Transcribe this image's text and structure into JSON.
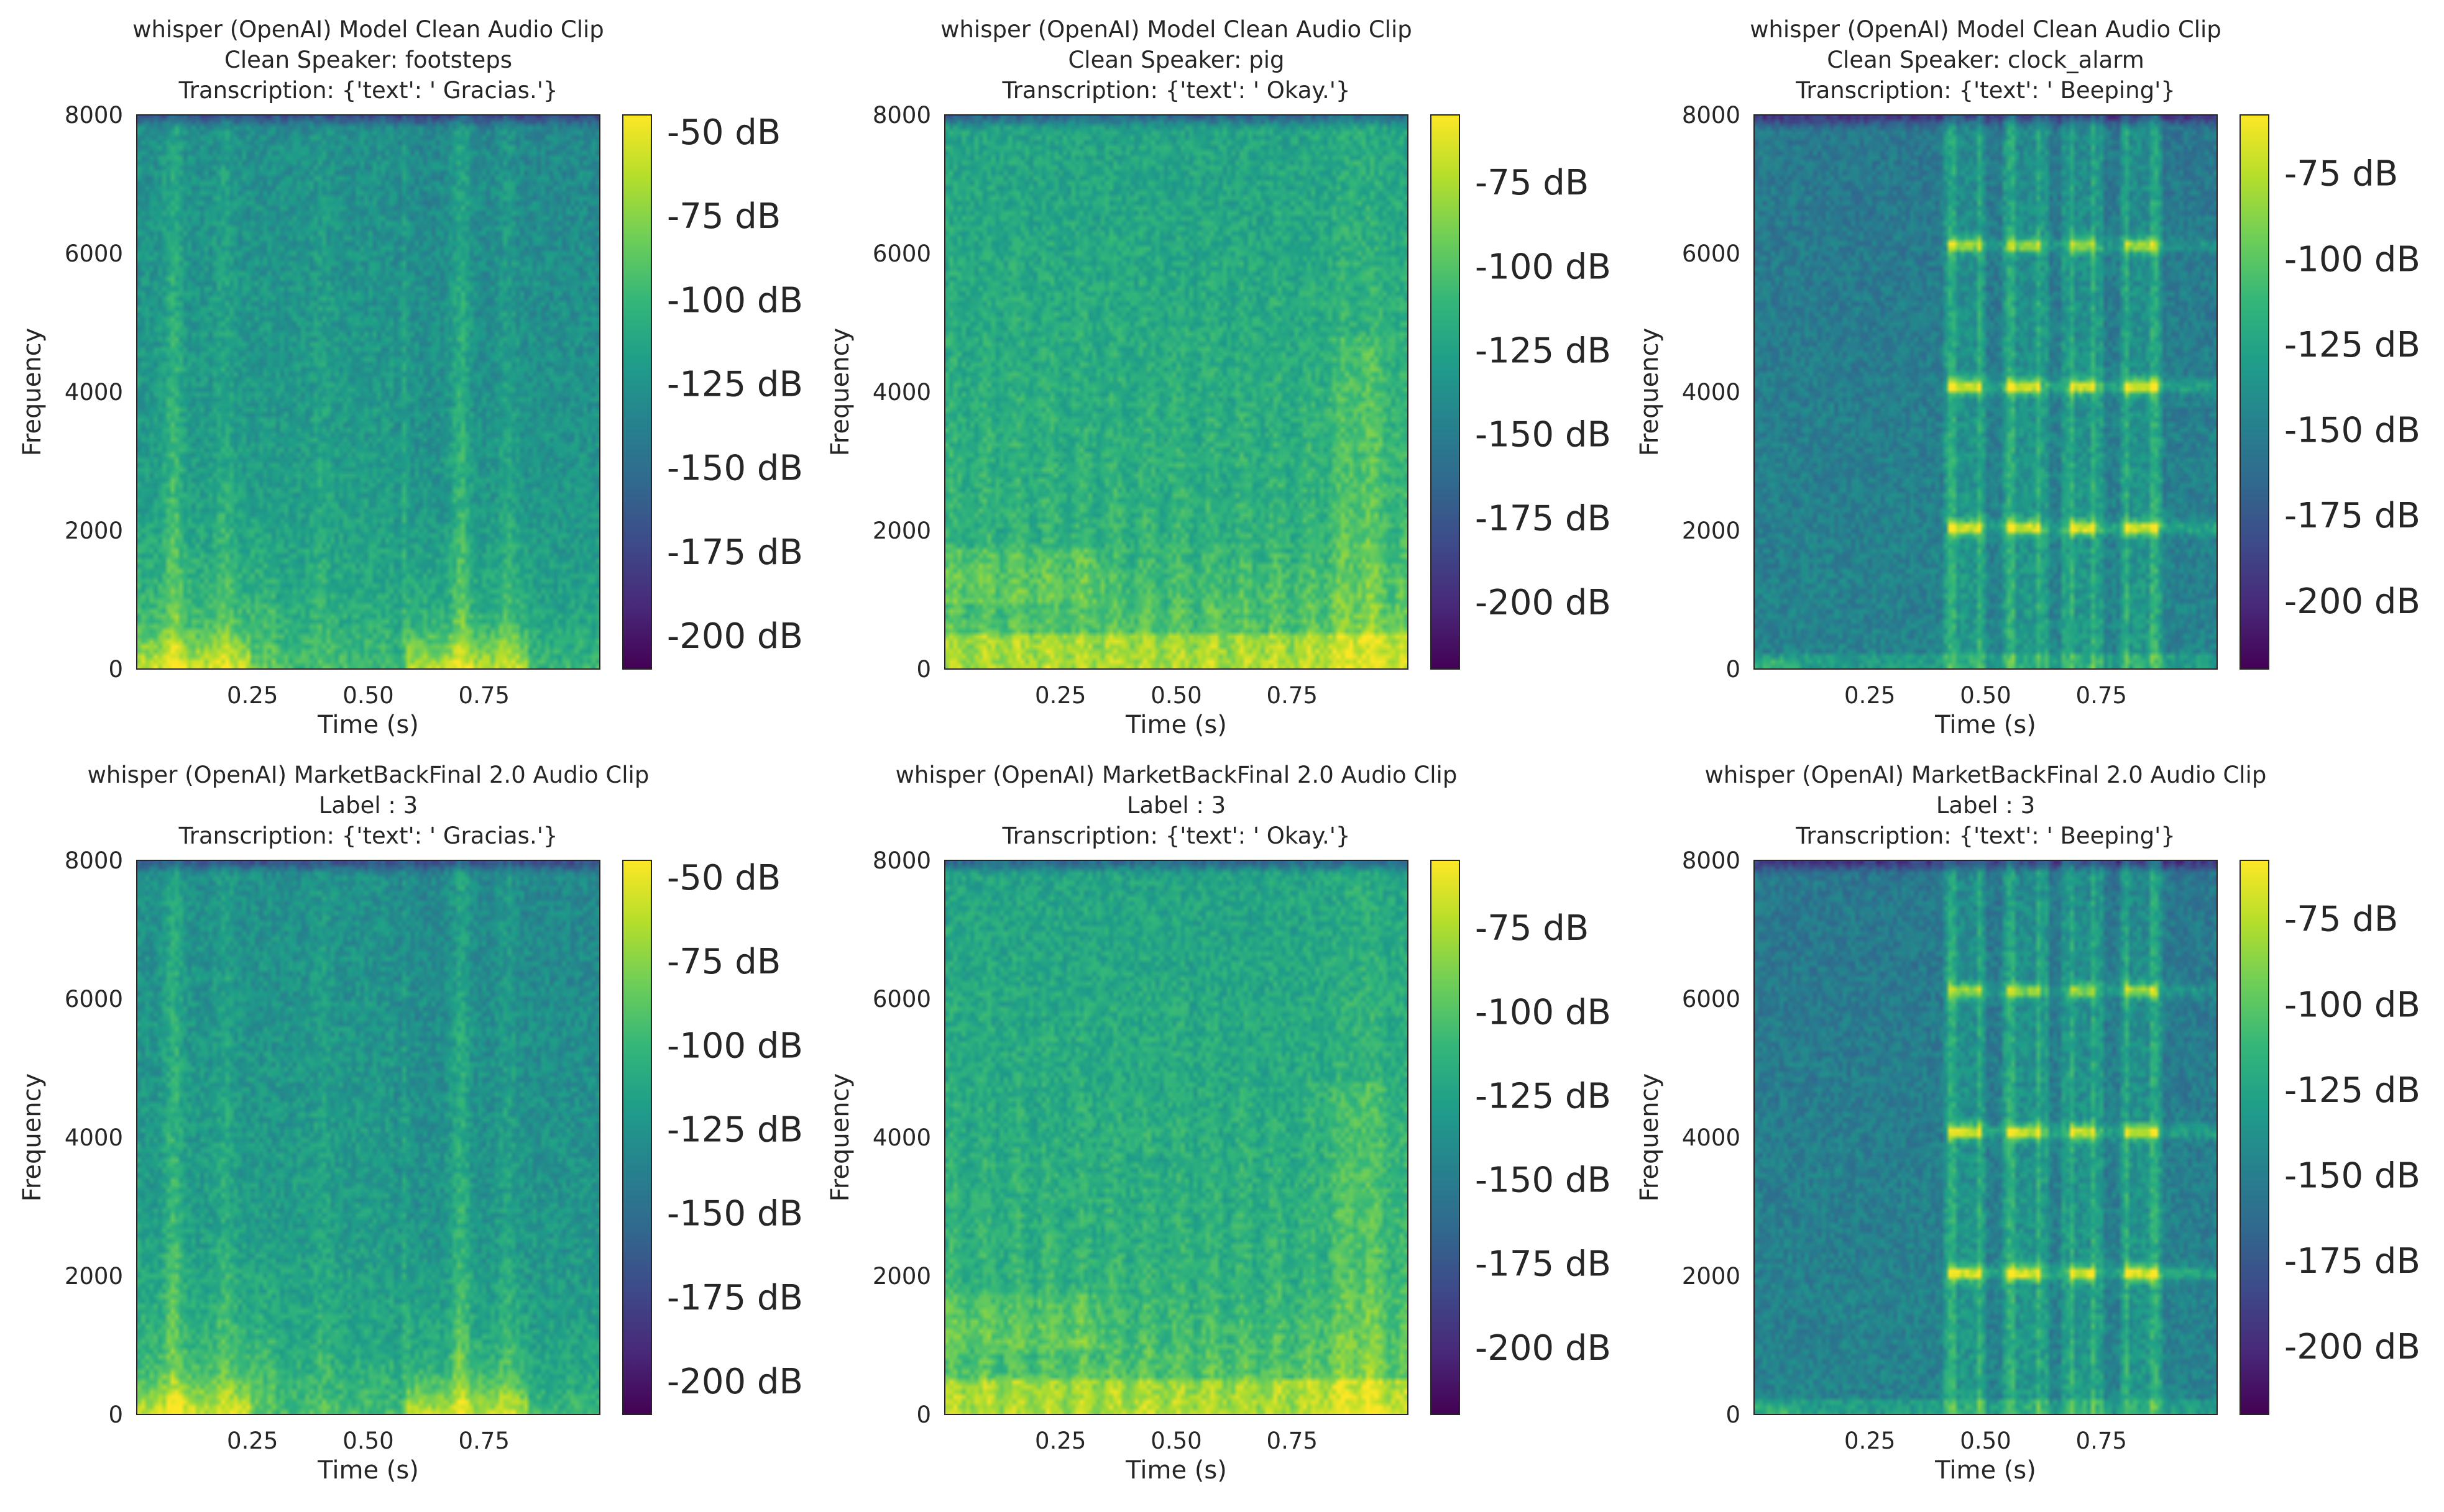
{
  "colormap": [
    "#440154",
    "#482878",
    "#3e4989",
    "#31688e",
    "#26828e",
    "#1f9e89",
    "#35b779",
    "#6ece58",
    "#b5de2b",
    "#fde725"
  ],
  "chart_data": [
    {
      "type": "heatmap",
      "subtype": "spectrogram",
      "title_lines": [
        "whisper (OpenAI) Model Clean Audio Clip",
        "Clean Speaker: footsteps",
        "Transcription: {'text': ' Gracias.'}"
      ],
      "xlabel": "Time (s)",
      "ylabel": "Frequency",
      "xlim": [
        0,
        1.0
      ],
      "ylim": [
        0,
        8000
      ],
      "xticks": [
        0.25,
        0.5,
        0.75
      ],
      "xtick_labels": [
        "0.25",
        "0.50",
        "0.75"
      ],
      "yticks": [
        0,
        2000,
        4000,
        6000,
        8000
      ],
      "ytick_labels": [
        "0",
        "2000",
        "4000",
        "6000",
        "8000"
      ],
      "colorbar": {
        "range_db": [
          -210,
          -45
        ],
        "ticks_db": [
          -50,
          -75,
          -100,
          -125,
          -150,
          -175,
          -200
        ],
        "tick_labels": [
          "-50 dB",
          "-75 dB",
          "-100 dB",
          "-125 dB",
          "-150 dB",
          "-175 dB",
          "-200 dB"
        ]
      },
      "pattern": "footsteps",
      "seed": 11
    },
    {
      "type": "heatmap",
      "subtype": "spectrogram",
      "title_lines": [
        "whisper (OpenAI) Model Clean Audio Clip",
        "Clean Speaker: pig",
        "Transcription: {'text': ' Okay.'}"
      ],
      "xlabel": "Time (s)",
      "ylabel": "Frequency",
      "xlim": [
        0,
        1.0
      ],
      "ylim": [
        0,
        8000
      ],
      "xticks": [
        0.25,
        0.5,
        0.75
      ],
      "xtick_labels": [
        "0.25",
        "0.50",
        "0.75"
      ],
      "yticks": [
        0,
        2000,
        4000,
        6000,
        8000
      ],
      "ytick_labels": [
        "0",
        "2000",
        "4000",
        "6000",
        "8000"
      ],
      "colorbar": {
        "range_db": [
          -220,
          -55
        ],
        "ticks_db": [
          -75,
          -100,
          -125,
          -150,
          -175,
          -200
        ],
        "tick_labels": [
          "-75 dB",
          "-100 dB",
          "-125 dB",
          "-150 dB",
          "-175 dB",
          "-200 dB"
        ]
      },
      "pattern": "pig",
      "seed": 23
    },
    {
      "type": "heatmap",
      "subtype": "spectrogram",
      "title_lines": [
        "whisper (OpenAI) Model Clean Audio Clip",
        "Clean Speaker: clock_alarm",
        "Transcription: {'text': ' Beeping'}"
      ],
      "xlabel": "Time (s)",
      "ylabel": "Frequency",
      "xlim": [
        0,
        1.0
      ],
      "ylim": [
        0,
        8000
      ],
      "xticks": [
        0.25,
        0.5,
        0.75
      ],
      "xtick_labels": [
        "0.25",
        "0.50",
        "0.75"
      ],
      "yticks": [
        0,
        2000,
        4000,
        6000,
        8000
      ],
      "ytick_labels": [
        "0",
        "2000",
        "4000",
        "6000",
        "8000"
      ],
      "colorbar": {
        "range_db": [
          -220,
          -58
        ],
        "ticks_db": [
          -75,
          -100,
          -125,
          -150,
          -175,
          -200
        ],
        "tick_labels": [
          "-75 dB",
          "-100 dB",
          "-125 dB",
          "-150 dB",
          "-175 dB",
          "-200 dB"
        ]
      },
      "pattern": "clock_alarm",
      "seed": 37
    },
    {
      "type": "heatmap",
      "subtype": "spectrogram",
      "title_lines": [
        "whisper (OpenAI) MarketBackFinal 2.0 Audio Clip",
        "Label : 3",
        "Transcription: {'text': ' Gracias.'}"
      ],
      "xlabel": "Time (s)",
      "ylabel": "Frequency",
      "xlim": [
        0,
        1.0
      ],
      "ylim": [
        0,
        8000
      ],
      "xticks": [
        0.25,
        0.5,
        0.75
      ],
      "xtick_labels": [
        "0.25",
        "0.50",
        "0.75"
      ],
      "yticks": [
        0,
        2000,
        4000,
        6000,
        8000
      ],
      "ytick_labels": [
        "0",
        "2000",
        "4000",
        "6000",
        "8000"
      ],
      "colorbar": {
        "range_db": [
          -210,
          -45
        ],
        "ticks_db": [
          -50,
          -75,
          -100,
          -125,
          -150,
          -175,
          -200
        ],
        "tick_labels": [
          "-50 dB",
          "-75 dB",
          "-100 dB",
          "-125 dB",
          "-150 dB",
          "-175 dB",
          "-200 dB"
        ]
      },
      "pattern": "footsteps",
      "seed": 41
    },
    {
      "type": "heatmap",
      "subtype": "spectrogram",
      "title_lines": [
        "whisper (OpenAI) MarketBackFinal 2.0 Audio Clip",
        "Label : 3",
        "Transcription: {'text': ' Okay.'}"
      ],
      "xlabel": "Time (s)",
      "ylabel": "Frequency",
      "xlim": [
        0,
        1.0
      ],
      "ylim": [
        0,
        8000
      ],
      "xticks": [
        0.25,
        0.5,
        0.75
      ],
      "xtick_labels": [
        "0.25",
        "0.50",
        "0.75"
      ],
      "yticks": [
        0,
        2000,
        4000,
        6000,
        8000
      ],
      "ytick_labels": [
        "0",
        "2000",
        "4000",
        "6000",
        "8000"
      ],
      "colorbar": {
        "range_db": [
          -220,
          -55
        ],
        "ticks_db": [
          -75,
          -100,
          -125,
          -150,
          -175,
          -200
        ],
        "tick_labels": [
          "-75 dB",
          "-100 dB",
          "-125 dB",
          "-150 dB",
          "-175 dB",
          "-200 dB"
        ]
      },
      "pattern": "pig",
      "seed": 53
    },
    {
      "type": "heatmap",
      "subtype": "spectrogram",
      "title_lines": [
        "whisper (OpenAI) MarketBackFinal 2.0 Audio Clip",
        "Label : 3",
        "Transcription: {'text': ' Beeping'}"
      ],
      "xlabel": "Time (s)",
      "ylabel": "Frequency",
      "xlim": [
        0,
        1.0
      ],
      "ylim": [
        0,
        8000
      ],
      "xticks": [
        0.25,
        0.5,
        0.75
      ],
      "xtick_labels": [
        "0.25",
        "0.50",
        "0.75"
      ],
      "yticks": [
        0,
        2000,
        4000,
        6000,
        8000
      ],
      "ytick_labels": [
        "0",
        "2000",
        "4000",
        "6000",
        "8000"
      ],
      "colorbar": {
        "range_db": [
          -220,
          -58
        ],
        "ticks_db": [
          -75,
          -100,
          -125,
          -150,
          -175,
          -200
        ],
        "tick_labels": [
          "-75 dB",
          "-100 dB",
          "-125 dB",
          "-150 dB",
          "-175 dB",
          "-200 dB"
        ]
      },
      "pattern": "clock_alarm",
      "seed": 67
    }
  ]
}
